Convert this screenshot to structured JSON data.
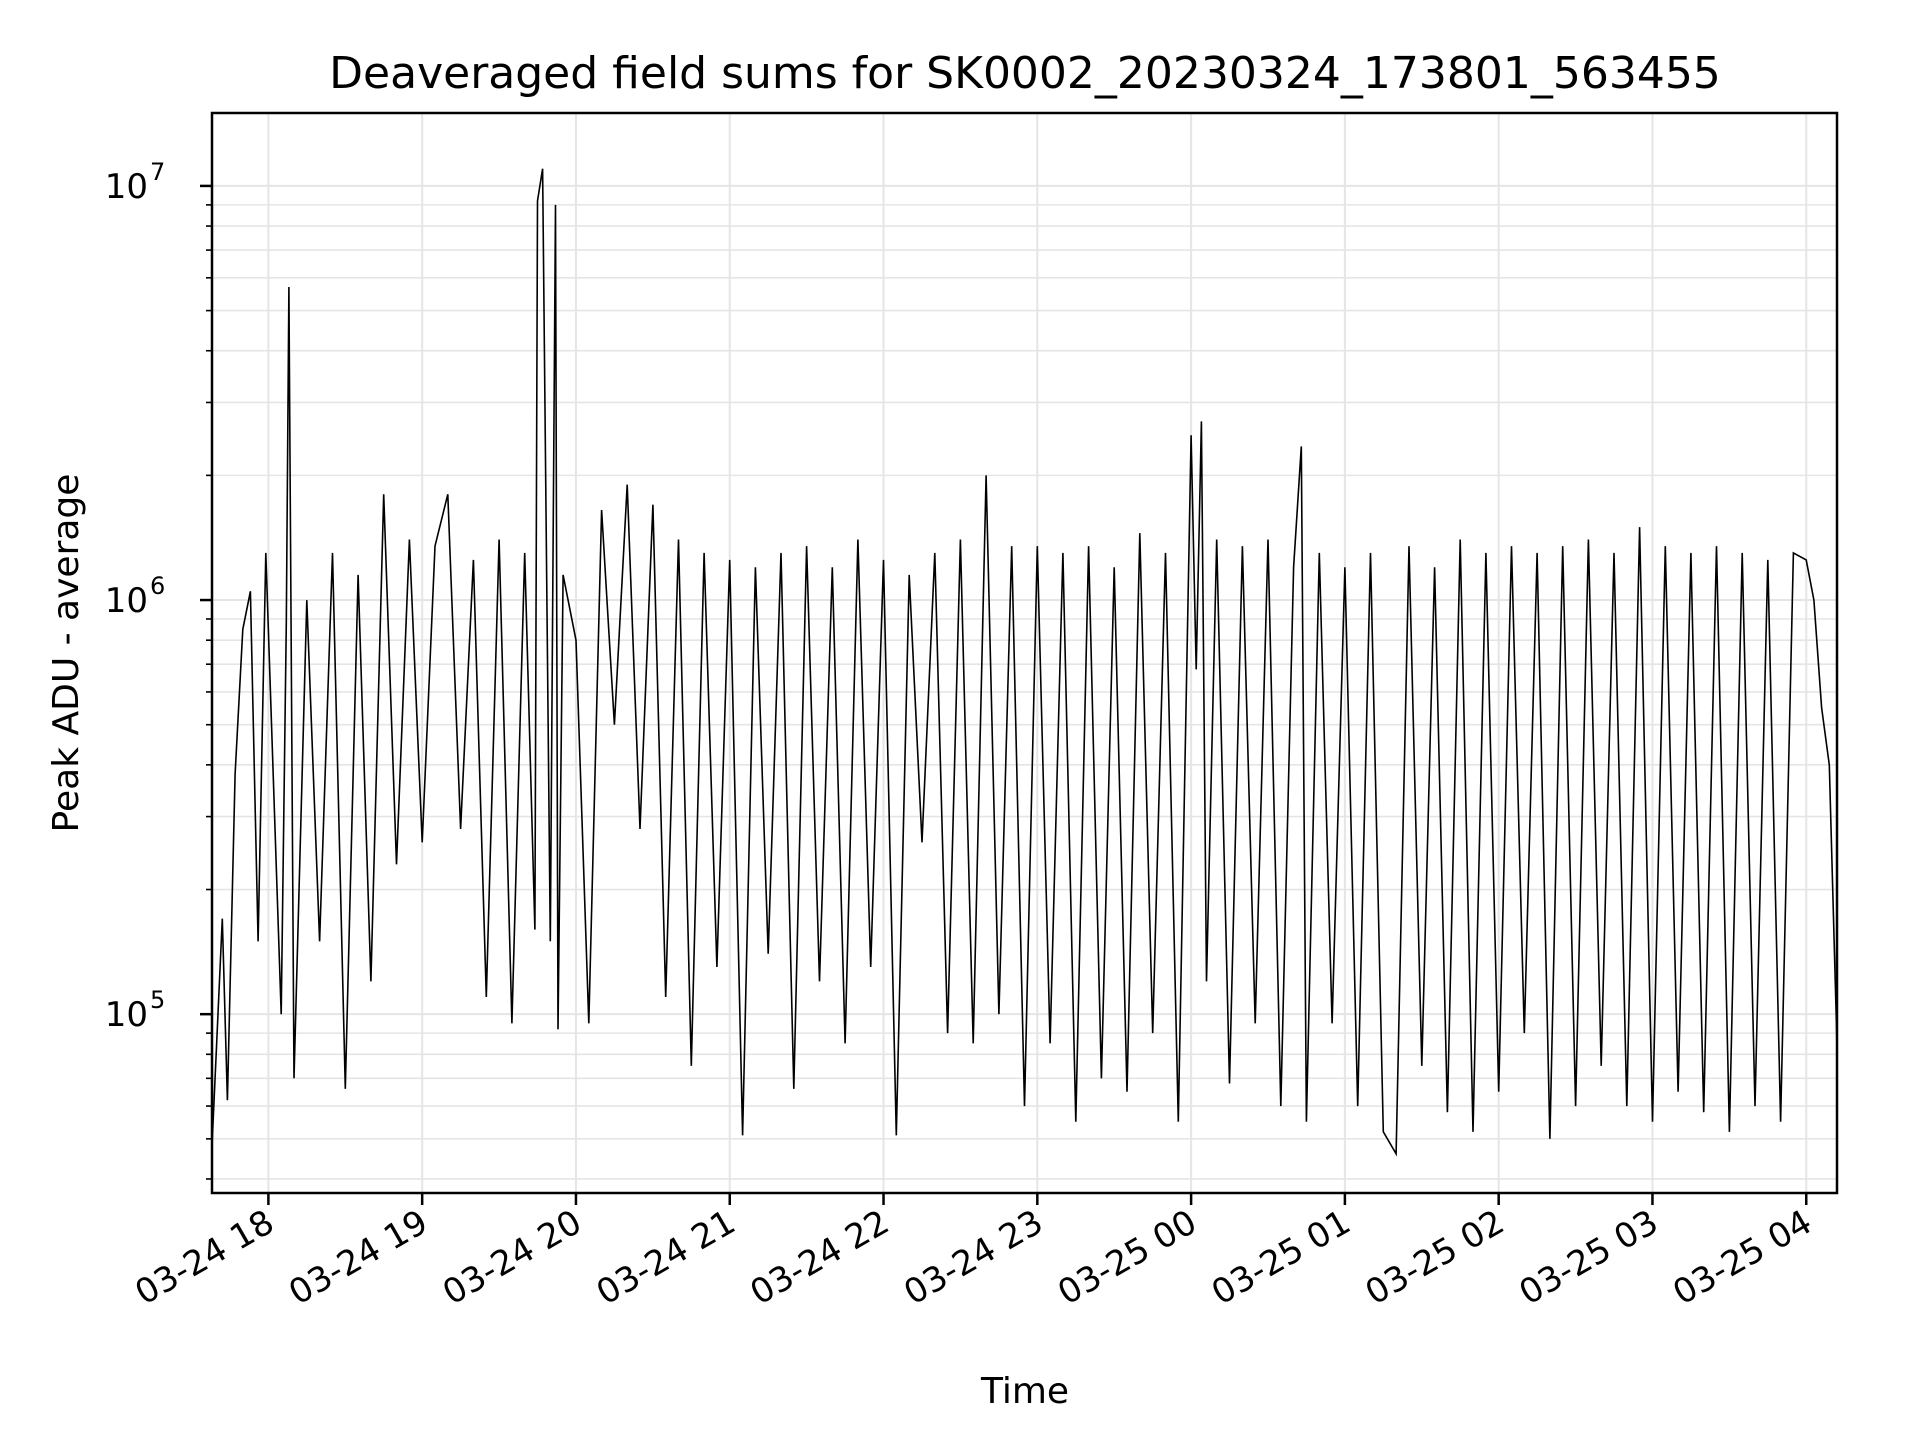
{
  "chart_data": {
    "type": "line",
    "title": "Deaveraged field sums for SK0002_20230324_173801_563455",
    "xlabel": "Time",
    "ylabel": "Peak ADU - average",
    "yscale": "log",
    "ylim": [
      37000,
      15000000
    ],
    "xlim": [
      "2023-03-24 17:38",
      "2023-03-25 04:12"
    ],
    "grid": true,
    "series_color": "#000000",
    "grid_color": "#e5e5e5",
    "x_ticks": [
      {
        "value": "2023-03-24 18:00",
        "label": "03-24 18"
      },
      {
        "value": "2023-03-24 19:00",
        "label": "03-24 19"
      },
      {
        "value": "2023-03-24 20:00",
        "label": "03-24 20"
      },
      {
        "value": "2023-03-24 21:00",
        "label": "03-24 21"
      },
      {
        "value": "2023-03-24 22:00",
        "label": "03-24 22"
      },
      {
        "value": "2023-03-24 23:00",
        "label": "03-24 23"
      },
      {
        "value": "2023-03-25 00:00",
        "label": "03-25 00"
      },
      {
        "value": "2023-03-25 01:00",
        "label": "03-25 01"
      },
      {
        "value": "2023-03-25 02:00",
        "label": "03-25 02"
      },
      {
        "value": "2023-03-25 03:00",
        "label": "03-25 03"
      },
      {
        "value": "2023-03-25 04:00",
        "label": "03-25 04"
      }
    ],
    "y_ticks": [
      {
        "value": 100000,
        "base": "10",
        "exp": "5"
      },
      {
        "value": 1000000,
        "base": "10",
        "exp": "6"
      },
      {
        "value": 10000000,
        "base": "10",
        "exp": "7"
      }
    ],
    "series": [
      {
        "x": [
          "2023-03-24 17:38",
          "2023-03-24 17:42",
          "2023-03-24 17:44",
          "2023-03-24 17:47",
          "2023-03-24 17:50",
          "2023-03-24 17:53",
          "2023-03-24 17:56",
          "2023-03-24 17:59",
          "2023-03-24 18:05",
          "2023-03-24 18:07",
          "2023-03-24 18:08",
          "2023-03-24 18:10",
          "2023-03-24 18:15",
          "2023-03-24 18:20",
          "2023-03-24 18:25",
          "2023-03-24 18:30",
          "2023-03-24 18:35",
          "2023-03-24 18:40",
          "2023-03-24 18:45",
          "2023-03-24 18:50",
          "2023-03-24 18:55",
          "2023-03-24 19:00",
          "2023-03-24 19:05",
          "2023-03-24 19:10",
          "2023-03-24 19:15",
          "2023-03-24 19:20",
          "2023-03-24 19:25",
          "2023-03-24 19:30",
          "2023-03-24 19:35",
          "2023-03-24 19:40",
          "2023-03-24 19:44",
          "2023-03-24 19:45",
          "2023-03-24 19:47",
          "2023-03-24 19:50",
          "2023-03-24 19:52",
          "2023-03-24 19:53",
          "2023-03-24 19:55",
          "2023-03-24 20:00",
          "2023-03-24 20:05",
          "2023-03-24 20:10",
          "2023-03-24 20:15",
          "2023-03-24 20:20",
          "2023-03-24 20:25",
          "2023-03-24 20:30",
          "2023-03-24 20:35",
          "2023-03-24 20:40",
          "2023-03-24 20:45",
          "2023-03-24 20:50",
          "2023-03-24 20:55",
          "2023-03-24 21:00",
          "2023-03-24 21:05",
          "2023-03-24 21:10",
          "2023-03-24 21:15",
          "2023-03-24 21:20",
          "2023-03-24 21:25",
          "2023-03-24 21:30",
          "2023-03-24 21:35",
          "2023-03-24 21:40",
          "2023-03-24 21:45",
          "2023-03-24 21:50",
          "2023-03-24 21:55",
          "2023-03-24 22:00",
          "2023-03-24 22:05",
          "2023-03-24 22:10",
          "2023-03-24 22:15",
          "2023-03-24 22:20",
          "2023-03-24 22:25",
          "2023-03-24 22:30",
          "2023-03-24 22:35",
          "2023-03-24 22:40",
          "2023-03-24 22:45",
          "2023-03-24 22:50",
          "2023-03-24 22:55",
          "2023-03-24 23:00",
          "2023-03-24 23:05",
          "2023-03-24 23:10",
          "2023-03-24 23:15",
          "2023-03-24 23:20",
          "2023-03-24 23:25",
          "2023-03-24 23:30",
          "2023-03-24 23:35",
          "2023-03-24 23:40",
          "2023-03-24 23:45",
          "2023-03-24 23:50",
          "2023-03-24 23:55",
          "2023-03-25 00:00",
          "2023-03-25 00:02",
          "2023-03-25 00:04",
          "2023-03-25 00:06",
          "2023-03-25 00:10",
          "2023-03-25 00:15",
          "2023-03-25 00:20",
          "2023-03-25 00:25",
          "2023-03-25 00:30",
          "2023-03-25 00:35",
          "2023-03-25 00:40",
          "2023-03-25 00:43",
          "2023-03-25 00:45",
          "2023-03-25 00:50",
          "2023-03-25 00:55",
          "2023-03-25 01:00",
          "2023-03-25 01:05",
          "2023-03-25 01:10",
          "2023-03-25 01:15",
          "2023-03-25 01:20",
          "2023-03-25 01:25",
          "2023-03-25 01:30",
          "2023-03-25 01:35",
          "2023-03-25 01:40",
          "2023-03-25 01:45",
          "2023-03-25 01:50",
          "2023-03-25 01:55",
          "2023-03-25 02:00",
          "2023-03-25 02:05",
          "2023-03-25 02:10",
          "2023-03-25 02:15",
          "2023-03-25 02:20",
          "2023-03-25 02:25",
          "2023-03-25 02:30",
          "2023-03-25 02:35",
          "2023-03-25 02:40",
          "2023-03-25 02:45",
          "2023-03-25 02:50",
          "2023-03-25 02:55",
          "2023-03-25 03:00",
          "2023-03-25 03:05",
          "2023-03-25 03:10",
          "2023-03-25 03:15",
          "2023-03-25 03:20",
          "2023-03-25 03:25",
          "2023-03-25 03:30",
          "2023-03-25 03:35",
          "2023-03-25 03:40",
          "2023-03-25 03:45",
          "2023-03-25 03:50",
          "2023-03-25 03:55",
          "2023-03-25 04:00",
          "2023-03-25 04:03",
          "2023-03-25 04:06",
          "2023-03-25 04:09",
          "2023-03-25 04:12"
        ],
        "y": [
          48000,
          170000,
          62000,
          380000,
          850000,
          1050000,
          150000,
          1300000,
          100000,
          880000,
          5700000,
          70000,
          1000000,
          150000,
          1300000,
          66000,
          1150000,
          120000,
          1800000,
          230000,
          1400000,
          260000,
          1350000,
          1800000,
          280000,
          1250000,
          110000,
          1400000,
          95000,
          1300000,
          160000,
          9200000,
          11000000,
          150000,
          9000000,
          92000,
          1150000,
          800000,
          95000,
          1650000,
          500000,
          1900000,
          280000,
          1700000,
          110000,
          1400000,
          75000,
          1300000,
          130000,
          1250000,
          51000,
          1200000,
          140000,
          1300000,
          66000,
          1350000,
          120000,
          1200000,
          85000,
          1400000,
          130000,
          1250000,
          51000,
          1150000,
          260000,
          1300000,
          90000,
          1400000,
          85000,
          2000000,
          100000,
          1350000,
          60000,
          1350000,
          85000,
          1300000,
          55000,
          1350000,
          70000,
          1200000,
          65000,
          1450000,
          90000,
          1300000,
          55000,
          2500000,
          680000,
          2700000,
          120000,
          1400000,
          68000,
          1350000,
          95000,
          1400000,
          60000,
          1200000,
          2350000,
          55000,
          1300000,
          95000,
          1200000,
          60000,
          1300000,
          52000,
          46000,
          1350000,
          75000,
          1200000,
          58000,
          1400000,
          52000,
          1300000,
          65000,
          1350000,
          90000,
          1300000,
          50000,
          1350000,
          60000,
          1400000,
          75000,
          1300000,
          60000,
          1500000,
          55000,
          1350000,
          65000,
          1300000,
          58000,
          1350000,
          52000,
          1300000,
          60000,
          1250000,
          55000,
          1300000,
          1250000,
          1000000,
          550000,
          400000,
          84000
        ]
      }
    ]
  }
}
